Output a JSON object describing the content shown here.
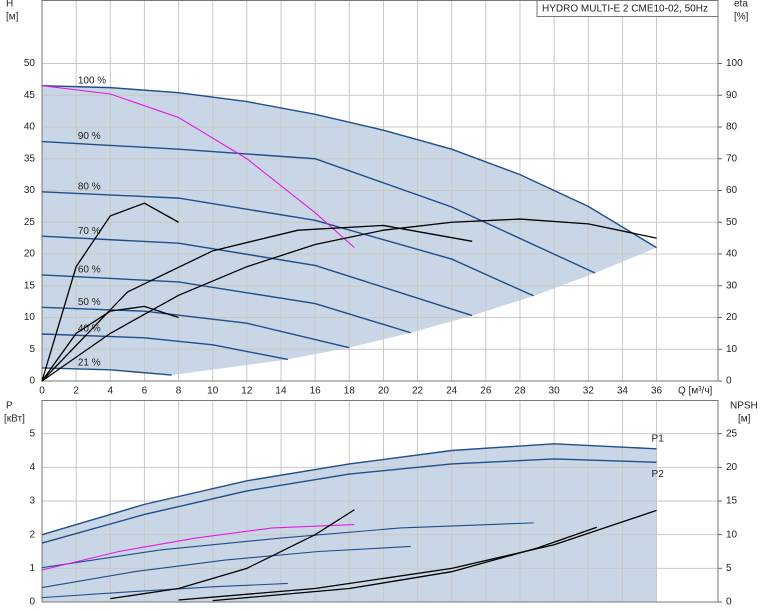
{
  "chart_data": [
    {
      "type": "line",
      "title": "HYDRO MULTI-E 2 CME10-02, 50Hz",
      "y_label": "H",
      "y_unit": "[м]",
      "y2_label": "eta",
      "y2_unit": "[%]",
      "x_label": "Q [м³/ч]",
      "xlim": [
        0,
        39.6
      ],
      "ylim": [
        0,
        60
      ],
      "y2lim": [
        0,
        120
      ],
      "xticks": [
        0,
        2,
        4,
        6,
        8,
        10,
        12,
        14,
        16,
        18,
        20,
        22,
        24,
        26,
        28,
        30,
        32,
        34,
        36
      ],
      "yticks": [
        0,
        5,
        10,
        15,
        20,
        25,
        30,
        35,
        40,
        45,
        50
      ],
      "y2ticks": [
        0,
        10,
        20,
        30,
        40,
        50,
        60,
        70,
        80,
        90,
        100
      ],
      "grid": true,
      "series": [
        {
          "name": "100 %",
          "color": "#1f4e8c",
          "x": [
            0,
            4,
            8,
            12,
            16,
            20,
            24,
            28,
            32,
            36
          ],
          "values": [
            46.5,
            46.2,
            45.4,
            44,
            42,
            39.5,
            36.5,
            32.5,
            27.5,
            21
          ]
        },
        {
          "name": "90 %",
          "color": "#1f4e8c",
          "x": [
            0,
            8,
            16,
            24,
            32.4
          ],
          "values": [
            37.7,
            36.5,
            35,
            27.4,
            17
          ]
        },
        {
          "name": "80 %",
          "color": "#1f4e8c",
          "x": [
            0,
            8,
            16,
            24,
            28.8
          ],
          "values": [
            29.8,
            28.8,
            25.3,
            19.2,
            13.4
          ]
        },
        {
          "name": "70 %",
          "color": "#1f4e8c",
          "x": [
            0,
            8,
            16,
            25.2
          ],
          "values": [
            22.8,
            21.7,
            18.2,
            10.3
          ]
        },
        {
          "name": "60 %",
          "color": "#1f4e8c",
          "x": [
            0,
            8,
            16,
            21.6
          ],
          "values": [
            16.7,
            15.6,
            12.2,
            7.6
          ]
        },
        {
          "name": "50 %",
          "color": "#1f4e8c",
          "x": [
            0,
            6,
            12,
            18
          ],
          "values": [
            11.6,
            11,
            9.1,
            5.25
          ]
        },
        {
          "name": "40 %",
          "color": "#1f4e8c",
          "x": [
            0,
            6,
            10,
            14.4
          ],
          "values": [
            7.4,
            6.8,
            5.7,
            3.4
          ]
        },
        {
          "name": "21 %",
          "color": "#1f4e8c",
          "x": [
            0,
            4,
            7.6
          ],
          "values": [
            2.05,
            1.76,
            0.93
          ]
        },
        {
          "color": "#e619e6",
          "x": [
            0,
            4,
            8,
            12,
            16,
            18.3
          ],
          "values": [
            46.5,
            45.2,
            41.5,
            35,
            26.5,
            21
          ]
        },
        {
          "color": "#000000",
          "axis": "y2",
          "x": [
            0,
            4,
            8,
            12,
            16,
            20,
            24,
            28,
            32,
            36
          ],
          "values": [
            0,
            15,
            27,
            36,
            43,
            47.5,
            50,
            51,
            49.5,
            45
          ]
        },
        {
          "color": "#000000",
          "axis": "y2",
          "x": [
            0,
            5,
            10,
            15,
            20,
            25.2
          ],
          "values": [
            0,
            28,
            41,
            47.5,
            49,
            44
          ]
        },
        {
          "color": "#000000",
          "axis": "y2",
          "x": [
            0,
            2,
            4,
            6,
            8
          ],
          "values": [
            0,
            36,
            52,
            56,
            50
          ]
        },
        {
          "color": "#000000",
          "axis": "y2",
          "x": [
            0,
            2,
            4,
            6,
            8
          ],
          "values": [
            0,
            15,
            22,
            23.5,
            20
          ]
        }
      ]
    },
    {
      "type": "line",
      "y_label": "P",
      "y_unit": "[кВт]",
      "y2_label": "NPSH",
      "y2_unit": "[м]",
      "xlim": [
        0,
        39.6
      ],
      "ylim": [
        0,
        6
      ],
      "y2lim": [
        0,
        30
      ],
      "xticks": [
        0,
        2,
        4,
        6,
        8,
        10,
        12,
        14,
        16,
        18,
        20,
        22,
        24,
        26,
        28,
        30,
        32,
        34,
        36
      ],
      "yticks": [
        0,
        1,
        2,
        3,
        4,
        5
      ],
      "y2ticks": [
        0,
        5,
        10,
        15,
        20,
        25
      ],
      "grid": true,
      "series": [
        {
          "name": "P1",
          "color": "#1f4e8c",
          "x": [
            0,
            6,
            12,
            18,
            24,
            30,
            36
          ],
          "values": [
            2.0,
            2.9,
            3.6,
            4.1,
            4.5,
            4.7,
            4.55
          ]
        },
        {
          "name": "P2",
          "color": "#1f4e8c",
          "x": [
            0,
            6,
            12,
            18,
            24,
            30,
            36
          ],
          "values": [
            1.75,
            2.6,
            3.3,
            3.8,
            4.1,
            4.25,
            4.15
          ]
        },
        {
          "color": "#1f4e8c",
          "x": [
            0,
            7,
            14,
            21,
            28.8
          ],
          "values": [
            1.02,
            1.55,
            1.9,
            2.2,
            2.35
          ]
        },
        {
          "color": "#1f4e8c",
          "x": [
            0,
            5.4,
            10.8,
            16.2,
            21.6
          ],
          "values": [
            0.43,
            0.9,
            1.25,
            1.5,
            1.65
          ]
        },
        {
          "color": "#1f4e8c",
          "x": [
            0,
            5,
            10,
            14.4
          ],
          "values": [
            0.13,
            0.3,
            0.45,
            0.55
          ]
        },
        {
          "color": "#e619e6",
          "x": [
            0,
            4.5,
            9,
            13.5,
            18.3
          ],
          "values": [
            0.95,
            1.5,
            1.9,
            2.2,
            2.3
          ]
        },
        {
          "color": "#000000",
          "axis": "y2",
          "x": [
            8,
            16,
            24,
            30,
            36
          ],
          "values": [
            0.3,
            2,
            5,
            8.5,
            13.6
          ]
        },
        {
          "color": "#000000",
          "axis": "y2",
          "x": [
            10,
            18,
            24,
            29,
            32.5
          ],
          "values": [
            0.2,
            2,
            4.5,
            8,
            11.1
          ]
        },
        {
          "color": "#000000",
          "axis": "y2",
          "x": [
            4,
            8,
            12,
            16,
            18.3
          ],
          "values": [
            0.5,
            2,
            5,
            10,
            13.7
          ]
        }
      ]
    }
  ]
}
